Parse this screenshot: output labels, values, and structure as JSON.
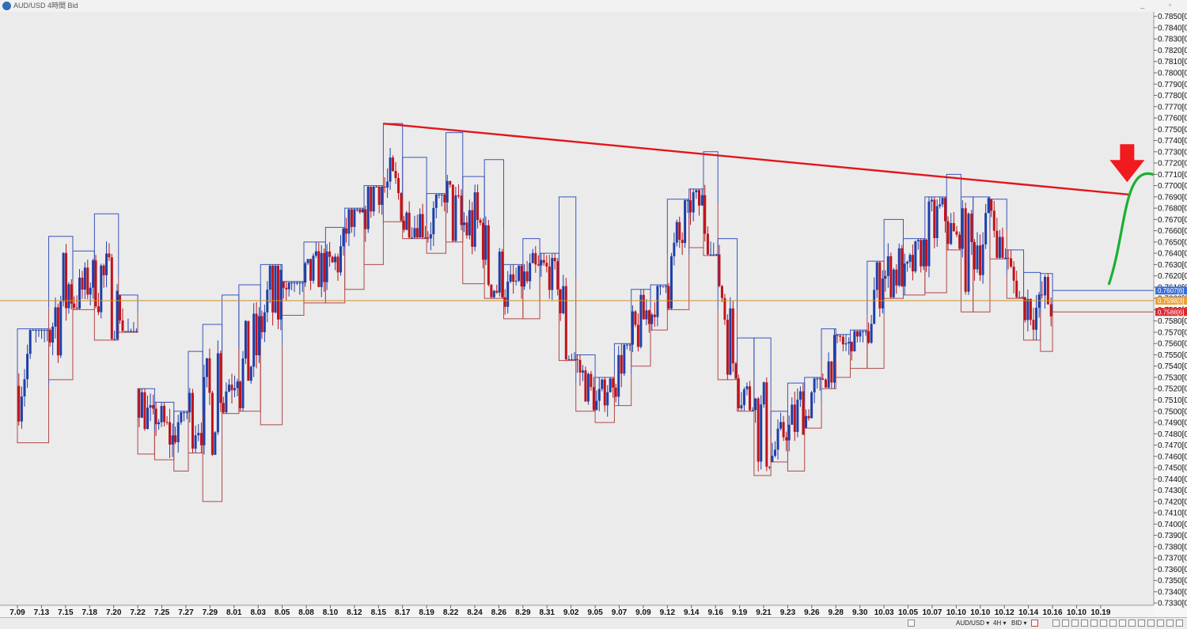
{
  "window": {
    "title": "AUD/USD 4時間 Bid",
    "controls": "_ ▫"
  },
  "toolbar": {
    "symbol": "AUD/USD ▾",
    "timeframe": "4H ▾",
    "price_side": "BID ▾"
  },
  "colors": {
    "resistance": "#e3151a",
    "forecast": "#19b032",
    "down_arrow": "#f01b1f",
    "bull_candle": "#1f3fa8",
    "bear_candle": "#c0131a",
    "box_upper": "#3b55b8",
    "box_lower": "#b04848",
    "current_price_line": "#d08d2a"
  },
  "chart_data": {
    "type": "candlestick",
    "symbol": "AUD/USD",
    "timeframe": "4H",
    "x_tick_labels": [
      "7.09",
      "7.13",
      "7.15",
      "7.18",
      "7.20",
      "7.22",
      "7.25",
      "7.27",
      "7.29",
      "8.01",
      "8.03",
      "8.05",
      "8.08",
      "8.10",
      "8.12",
      "8.15",
      "8.17",
      "8.19",
      "8.22",
      "8.24",
      "8.26",
      "8.29",
      "8.31",
      "9.02",
      "9.05",
      "9.07",
      "9.09",
      "9.12",
      "9.14",
      "9.16",
      "9.19",
      "9.21",
      "9.23",
      "9.26",
      "9.28",
      "9.30",
      "10.03",
      "10.05",
      "10.07",
      "10.10",
      "10.10",
      "10.12",
      "10.14",
      "10.16",
      "10.10",
      "10.19"
    ],
    "y_tick_labels": [
      "0.7850[0]",
      "0.7840[0]",
      "0.7830[0]",
      "0.7820[0]",
      "0.7810[0]",
      "0.7800[0]",
      "0.7790[0]",
      "0.7780[0]",
      "0.7770[0]",
      "0.7760[0]",
      "0.7750[0]",
      "0.7740[0]",
      "0.7730[0]",
      "0.7720[0]",
      "0.7710[0]",
      "0.7700[0]",
      "0.7690[0]",
      "0.7680[0]",
      "0.7670[0]",
      "0.7660[0]",
      "0.7650[0]",
      "0.7640[0]",
      "0.7630[0]",
      "0.7620[0]",
      "0.7610[0]",
      "0.7600[0]",
      "0.7590[0]",
      "0.7580[0]",
      "0.7570[0]",
      "0.7560[0]",
      "0.7550[0]",
      "0.7540[0]",
      "0.7530[0]",
      "0.7520[0]",
      "0.7510[0]",
      "0.7500[0]",
      "0.7490[0]",
      "0.7480[0]",
      "0.7470[0]",
      "0.7460[0]",
      "0.7450[0]",
      "0.7440[0]",
      "0.7430[0]",
      "0.7420[0]",
      "0.7410[0]",
      "0.7400[0]",
      "0.7390[0]",
      "0.7380[0]",
      "0.7370[0]",
      "0.7360[0]",
      "0.7350[0]",
      "0.7340[0]",
      "0.7330[0]"
    ],
    "ylim": [
      0.7328,
      0.7854
    ],
    "price_tags": [
      "0.7607[6]",
      "0.7598[3]",
      "0.7588[6]"
    ],
    "price_tag_values": [
      0.7607,
      0.7598,
      0.7588
    ],
    "current_price": 0.7598,
    "resistance_line": {
      "from": [
        15.2,
        0.7755
      ],
      "to": [
        46.2,
        0.7692
      ]
    },
    "forecast_curve": [
      [
        45.35,
        0.7613
      ],
      [
        46.95,
        0.7684
      ],
      [
        48.6,
        0.764
      ]
    ],
    "down_arrow_at": [
      46.1,
      0.7703
    ],
    "box_periods": [
      {
        "x0": 0.0,
        "x1": 1.3,
        "high": 0.7573,
        "low": 0.7472
      },
      {
        "x0": 1.3,
        "x1": 2.3,
        "high": 0.7655,
        "low": 0.7528
      },
      {
        "x0": 2.3,
        "x1": 3.2,
        "high": 0.7642,
        "low": 0.759
      },
      {
        "x0": 3.2,
        "x1": 4.2,
        "high": 0.7675,
        "low": 0.7563
      },
      {
        "x0": 4.2,
        "x1": 5.0,
        "high": 0.7603,
        "low": 0.757
      },
      {
        "x0": 5.0,
        "x1": 5.7,
        "high": 0.752,
        "low": 0.7462
      },
      {
        "x0": 5.7,
        "x1": 6.5,
        "high": 0.7508,
        "low": 0.7457
      },
      {
        "x0": 6.5,
        "x1": 7.1,
        "high": 0.75,
        "low": 0.7447
      },
      {
        "x0": 7.1,
        "x1": 7.7,
        "high": 0.7553,
        "low": 0.7463
      },
      {
        "x0": 7.7,
        "x1": 8.5,
        "high": 0.7577,
        "low": 0.742
      },
      {
        "x0": 8.5,
        "x1": 9.2,
        "high": 0.7603,
        "low": 0.7498
      },
      {
        "x0": 9.2,
        "x1": 10.1,
        "high": 0.7612,
        "low": 0.75
      },
      {
        "x0": 10.1,
        "x1": 11.0,
        "high": 0.763,
        "low": 0.7488
      },
      {
        "x0": 11.0,
        "x1": 11.9,
        "high": 0.7615,
        "low": 0.7585
      },
      {
        "x0": 11.9,
        "x1": 12.8,
        "high": 0.765,
        "low": 0.7596
      },
      {
        "x0": 12.8,
        "x1": 13.6,
        "high": 0.7663,
        "low": 0.7596
      },
      {
        "x0": 13.6,
        "x1": 14.4,
        "high": 0.768,
        "low": 0.7608
      },
      {
        "x0": 14.4,
        "x1": 15.2,
        "high": 0.77,
        "low": 0.763
      },
      {
        "x0": 15.2,
        "x1": 16.0,
        "high": 0.7755,
        "low": 0.7668
      },
      {
        "x0": 16.0,
        "x1": 17.0,
        "high": 0.7725,
        "low": 0.7653
      },
      {
        "x0": 17.0,
        "x1": 17.8,
        "high": 0.7693,
        "low": 0.764
      },
      {
        "x0": 17.8,
        "x1": 18.5,
        "high": 0.7747,
        "low": 0.765
      },
      {
        "x0": 18.5,
        "x1": 19.4,
        "high": 0.7708,
        "low": 0.7613
      },
      {
        "x0": 19.4,
        "x1": 20.2,
        "high": 0.7723,
        "low": 0.76
      },
      {
        "x0": 20.2,
        "x1": 21.0,
        "high": 0.763,
        "low": 0.7582
      },
      {
        "x0": 21.0,
        "x1": 21.7,
        "high": 0.7653,
        "low": 0.7582
      },
      {
        "x0": 21.7,
        "x1": 22.5,
        "high": 0.764,
        "low": 0.7598
      },
      {
        "x0": 22.5,
        "x1": 23.2,
        "high": 0.769,
        "low": 0.7545
      },
      {
        "x0": 23.2,
        "x1": 24.0,
        "high": 0.755,
        "low": 0.75
      },
      {
        "x0": 24.0,
        "x1": 24.8,
        "high": 0.753,
        "low": 0.749
      },
      {
        "x0": 24.8,
        "x1": 25.5,
        "high": 0.756,
        "low": 0.7505
      },
      {
        "x0": 25.5,
        "x1": 26.3,
        "high": 0.7608,
        "low": 0.754
      },
      {
        "x0": 26.3,
        "x1": 27.0,
        "high": 0.7612,
        "low": 0.7572
      },
      {
        "x0": 27.0,
        "x1": 27.9,
        "high": 0.7688,
        "low": 0.759
      },
      {
        "x0": 27.9,
        "x1": 28.5,
        "high": 0.7697,
        "low": 0.7645
      },
      {
        "x0": 28.5,
        "x1": 29.1,
        "high": 0.773,
        "low": 0.7638
      },
      {
        "x0": 29.1,
        "x1": 29.9,
        "high": 0.7653,
        "low": 0.7528
      },
      {
        "x0": 29.9,
        "x1": 30.6,
        "high": 0.7565,
        "low": 0.75
      },
      {
        "x0": 30.6,
        "x1": 31.3,
        "high": 0.7565,
        "low": 0.7443
      },
      {
        "x0": 31.3,
        "x1": 32.0,
        "high": 0.75,
        "low": 0.7455
      },
      {
        "x0": 32.0,
        "x1": 32.7,
        "high": 0.7525,
        "low": 0.7447
      },
      {
        "x0": 32.7,
        "x1": 33.4,
        "high": 0.753,
        "low": 0.7485
      },
      {
        "x0": 33.4,
        "x1": 34.0,
        "high": 0.7573,
        "low": 0.752
      },
      {
        "x0": 34.0,
        "x1": 34.6,
        "high": 0.7568,
        "low": 0.753
      },
      {
        "x0": 34.6,
        "x1": 35.3,
        "high": 0.7572,
        "low": 0.7538
      },
      {
        "x0": 35.3,
        "x1": 36.0,
        "high": 0.7633,
        "low": 0.7538
      },
      {
        "x0": 36.0,
        "x1": 36.8,
        "high": 0.767,
        "low": 0.76
      },
      {
        "x0": 36.8,
        "x1": 37.7,
        "high": 0.7653,
        "low": 0.7603
      },
      {
        "x0": 37.7,
        "x1": 38.6,
        "high": 0.769,
        "low": 0.7605
      },
      {
        "x0": 38.6,
        "x1": 39.2,
        "high": 0.771,
        "low": 0.7643
      },
      {
        "x0": 39.2,
        "x1": 39.7,
        "high": 0.769,
        "low": 0.7588
      },
      {
        "x0": 39.7,
        "x1": 40.4,
        "high": 0.769,
        "low": 0.7588
      },
      {
        "x0": 40.4,
        "x1": 41.1,
        "high": 0.7688,
        "low": 0.7635
      },
      {
        "x0": 41.1,
        "x1": 41.8,
        "high": 0.7643,
        "low": 0.76
      },
      {
        "x0": 41.8,
        "x1": 42.5,
        "high": 0.7623,
        "low": 0.7563
      },
      {
        "x0": 42.5,
        "x1": 43.0,
        "high": 0.7622,
        "low": 0.7553
      }
    ],
    "candles": []
  },
  "statusbar": {
    "items": [
      "AUD/USD ▾",
      "4H ▾",
      "BID ▾"
    ]
  }
}
